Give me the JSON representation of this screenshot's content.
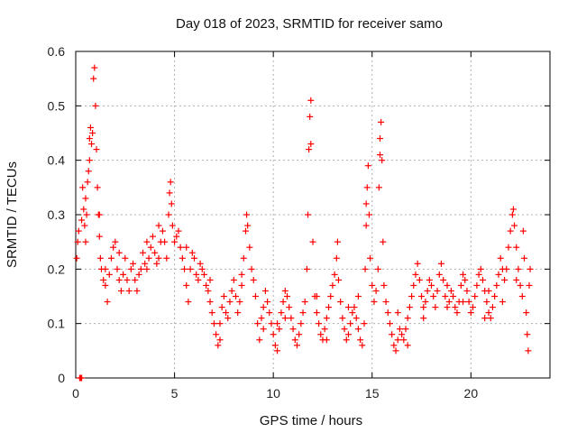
{
  "chart_data": {
    "type": "scatter",
    "title": "Day 018 of 2023, SRMTID for receiver samo",
    "xlabel": "GPS time / hours",
    "ylabel": "SRMTID / TECUs",
    "xlim": [
      0,
      24
    ],
    "ylim": [
      0,
      0.6
    ],
    "x_ticks": [
      0,
      5,
      10,
      15,
      20
    ],
    "x_tick_labels": [
      "0",
      "5",
      "10",
      "15",
      "20"
    ],
    "y_ticks": [
      0,
      0.1,
      0.2,
      0.3,
      0.4,
      0.5,
      0.6
    ],
    "y_tick_labels": [
      "0",
      "0.1",
      "0.2",
      "0.3",
      "0.4",
      "0.5",
      "0.6"
    ],
    "grid": true,
    "marker": "+",
    "color": "#ff0000",
    "series": [
      {
        "name": "SRMTID",
        "points": [
          [
            0.05,
            0.22
          ],
          [
            0.1,
            0.25
          ],
          [
            0.15,
            0.27
          ],
          [
            0.2,
            0.0
          ],
          [
            0.25,
            0.0
          ],
          [
            0.3,
            0.0
          ],
          [
            0.3,
            0.29
          ],
          [
            0.35,
            0.35
          ],
          [
            0.4,
            0.31
          ],
          [
            0.45,
            0.28
          ],
          [
            0.5,
            0.25
          ],
          [
            0.55,
            0.3
          ],
          [
            0.6,
            0.36
          ],
          [
            0.65,
            0.38
          ],
          [
            0.7,
            0.44
          ],
          [
            0.75,
            0.46
          ],
          [
            0.8,
            0.43
          ],
          [
            0.85,
            0.45
          ],
          [
            0.9,
            0.55
          ],
          [
            0.95,
            0.57
          ],
          [
            1.0,
            0.5
          ],
          [
            1.05,
            0.42
          ],
          [
            1.1,
            0.35
          ],
          [
            1.15,
            0.3
          ],
          [
            1.2,
            0.26
          ],
          [
            1.25,
            0.22
          ],
          [
            1.3,
            0.2
          ],
          [
            1.4,
            0.18
          ],
          [
            1.5,
            0.17
          ],
          [
            1.6,
            0.14
          ],
          [
            1.7,
            0.19
          ],
          [
            1.8,
            0.22
          ],
          [
            1.9,
            0.24
          ],
          [
            2.0,
            0.25
          ],
          [
            2.1,
            0.2
          ],
          [
            2.2,
            0.18
          ],
          [
            2.3,
            0.16
          ],
          [
            2.4,
            0.19
          ],
          [
            2.5,
            0.22
          ],
          [
            2.6,
            0.18
          ],
          [
            2.7,
            0.16
          ],
          [
            2.8,
            0.2
          ],
          [
            2.9,
            0.21
          ],
          [
            3.0,
            0.18
          ],
          [
            3.1,
            0.16
          ],
          [
            3.2,
            0.19
          ],
          [
            3.3,
            0.2
          ],
          [
            3.4,
            0.23
          ],
          [
            3.5,
            0.21
          ],
          [
            3.6,
            0.2
          ],
          [
            3.7,
            0.22
          ],
          [
            3.8,
            0.24
          ],
          [
            3.9,
            0.26
          ],
          [
            4.0,
            0.23
          ],
          [
            4.1,
            0.21
          ],
          [
            4.2,
            0.22
          ],
          [
            4.3,
            0.25
          ],
          [
            4.4,
            0.27
          ],
          [
            4.5,
            0.25
          ],
          [
            4.6,
            0.22
          ],
          [
            4.7,
            0.3
          ],
          [
            4.75,
            0.34
          ],
          [
            4.8,
            0.36
          ],
          [
            4.85,
            0.32
          ],
          [
            4.9,
            0.28
          ],
          [
            5.0,
            0.25
          ],
          [
            5.1,
            0.26
          ],
          [
            5.2,
            0.27
          ],
          [
            5.3,
            0.24
          ],
          [
            5.4,
            0.22
          ],
          [
            5.5,
            0.2
          ],
          [
            5.6,
            0.17
          ],
          [
            5.7,
            0.14
          ],
          [
            5.8,
            0.2
          ],
          [
            5.9,
            0.23
          ],
          [
            6.0,
            0.22
          ],
          [
            6.1,
            0.19
          ],
          [
            6.2,
            0.18
          ],
          [
            6.3,
            0.21
          ],
          [
            6.4,
            0.2
          ],
          [
            6.5,
            0.19
          ],
          [
            6.6,
            0.17
          ],
          [
            6.7,
            0.16
          ],
          [
            6.8,
            0.14
          ],
          [
            6.9,
            0.12
          ],
          [
            7.0,
            0.1
          ],
          [
            7.1,
            0.08
          ],
          [
            7.2,
            0.06
          ],
          [
            7.3,
            0.1
          ],
          [
            7.4,
            0.13
          ],
          [
            7.5,
            0.15
          ],
          [
            7.6,
            0.12
          ],
          [
            7.7,
            0.11
          ],
          [
            7.8,
            0.14
          ],
          [
            7.9,
            0.16
          ],
          [
            8.0,
            0.18
          ],
          [
            8.1,
            0.15
          ],
          [
            8.2,
            0.12
          ],
          [
            8.3,
            0.14
          ],
          [
            8.4,
            0.17
          ],
          [
            8.5,
            0.22
          ],
          [
            8.6,
            0.27
          ],
          [
            8.65,
            0.3
          ],
          [
            8.7,
            0.28
          ],
          [
            8.8,
            0.24
          ],
          [
            8.9,
            0.2
          ],
          [
            9.0,
            0.18
          ],
          [
            9.1,
            0.15
          ],
          [
            9.2,
            0.1
          ],
          [
            9.3,
            0.07
          ],
          [
            9.4,
            0.11
          ],
          [
            9.5,
            0.13
          ],
          [
            9.6,
            0.16
          ],
          [
            9.7,
            0.14
          ],
          [
            9.8,
            0.12
          ],
          [
            9.9,
            0.1
          ],
          [
            10.0,
            0.08
          ],
          [
            10.1,
            0.06
          ],
          [
            10.2,
            0.05
          ],
          [
            10.3,
            0.09
          ],
          [
            10.4,
            0.12
          ],
          [
            10.5,
            0.14
          ],
          [
            10.6,
            0.16
          ],
          [
            10.7,
            0.15
          ],
          [
            10.8,
            0.13
          ],
          [
            10.9,
            0.11
          ],
          [
            11.0,
            0.09
          ],
          [
            11.1,
            0.07
          ],
          [
            11.2,
            0.06
          ],
          [
            11.3,
            0.08
          ],
          [
            11.4,
            0.1
          ],
          [
            11.5,
            0.12
          ],
          [
            11.6,
            0.14
          ],
          [
            11.7,
            0.2
          ],
          [
            11.75,
            0.3
          ],
          [
            11.8,
            0.42
          ],
          [
            11.85,
            0.48
          ],
          [
            11.9,
            0.51
          ],
          [
            12.0,
            0.25
          ],
          [
            12.1,
            0.15
          ],
          [
            12.2,
            0.12
          ],
          [
            12.3,
            0.1
          ],
          [
            12.4,
            0.08
          ],
          [
            12.5,
            0.07
          ],
          [
            12.6,
            0.09
          ],
          [
            12.7,
            0.11
          ],
          [
            12.8,
            0.13
          ],
          [
            12.9,
            0.15
          ],
          [
            13.0,
            0.17
          ],
          [
            13.1,
            0.19
          ],
          [
            13.2,
            0.22
          ],
          [
            13.25,
            0.25
          ],
          [
            13.3,
            0.18
          ],
          [
            13.4,
            0.14
          ],
          [
            13.5,
            0.11
          ],
          [
            13.6,
            0.09
          ],
          [
            13.7,
            0.07
          ],
          [
            13.8,
            0.08
          ],
          [
            13.9,
            0.1
          ],
          [
            14.0,
            0.12
          ],
          [
            14.1,
            0.13
          ],
          [
            14.2,
            0.11
          ],
          [
            14.3,
            0.09
          ],
          [
            14.4,
            0.07
          ],
          [
            14.5,
            0.06
          ],
          [
            14.6,
            0.1
          ],
          [
            14.65,
            0.2
          ],
          [
            14.7,
            0.28
          ],
          [
            14.75,
            0.35
          ],
          [
            14.8,
            0.39
          ],
          [
            14.85,
            0.3
          ],
          [
            14.9,
            0.22
          ],
          [
            15.0,
            0.17
          ],
          [
            15.1,
            0.14
          ],
          [
            15.2,
            0.16
          ],
          [
            15.3,
            0.2
          ],
          [
            15.35,
            0.35
          ],
          [
            15.4,
            0.44
          ],
          [
            15.45,
            0.47
          ],
          [
            15.5,
            0.4
          ],
          [
            15.55,
            0.25
          ],
          [
            15.6,
            0.17
          ],
          [
            15.7,
            0.14
          ],
          [
            15.8,
            0.12
          ],
          [
            15.9,
            0.1
          ],
          [
            16.0,
            0.08
          ],
          [
            16.1,
            0.06
          ],
          [
            16.2,
            0.05
          ],
          [
            16.3,
            0.07
          ],
          [
            16.4,
            0.09
          ],
          [
            16.5,
            0.08
          ],
          [
            16.6,
            0.07
          ],
          [
            16.7,
            0.09
          ],
          [
            16.8,
            0.11
          ],
          [
            16.9,
            0.13
          ],
          [
            17.0,
            0.15
          ],
          [
            17.1,
            0.17
          ],
          [
            17.2,
            0.19
          ],
          [
            17.3,
            0.21
          ],
          [
            17.4,
            0.18
          ],
          [
            17.5,
            0.15
          ],
          [
            17.6,
            0.13
          ],
          [
            17.7,
            0.14
          ],
          [
            17.8,
            0.16
          ],
          [
            17.9,
            0.18
          ],
          [
            18.0,
            0.17
          ],
          [
            18.1,
            0.15
          ],
          [
            18.2,
            0.13
          ],
          [
            18.3,
            0.16
          ],
          [
            18.4,
            0.19
          ],
          [
            18.5,
            0.21
          ],
          [
            18.6,
            0.18
          ],
          [
            18.7,
            0.15
          ],
          [
            18.8,
            0.13
          ],
          [
            18.9,
            0.14
          ],
          [
            19.0,
            0.16
          ],
          [
            19.1,
            0.15
          ],
          [
            19.2,
            0.13
          ],
          [
            19.3,
            0.12
          ],
          [
            19.4,
            0.14
          ],
          [
            19.5,
            0.17
          ],
          [
            19.6,
            0.19
          ],
          [
            19.7,
            0.18
          ],
          [
            19.8,
            0.16
          ],
          [
            19.9,
            0.14
          ],
          [
            20.0,
            0.12
          ],
          [
            20.1,
            0.13
          ],
          [
            20.2,
            0.15
          ],
          [
            20.3,
            0.17
          ],
          [
            20.4,
            0.19
          ],
          [
            20.5,
            0.2
          ],
          [
            20.6,
            0.18
          ],
          [
            20.7,
            0.16
          ],
          [
            20.8,
            0.14
          ],
          [
            20.9,
            0.12
          ],
          [
            21.0,
            0.11
          ],
          [
            21.1,
            0.13
          ],
          [
            21.2,
            0.15
          ],
          [
            21.3,
            0.17
          ],
          [
            21.4,
            0.19
          ],
          [
            21.5,
            0.22
          ],
          [
            21.6,
            0.2
          ],
          [
            21.7,
            0.18
          ],
          [
            21.8,
            0.2
          ],
          [
            21.9,
            0.24
          ],
          [
            22.0,
            0.27
          ],
          [
            22.1,
            0.3
          ],
          [
            22.15,
            0.31
          ],
          [
            22.2,
            0.28
          ],
          [
            22.3,
            0.24
          ],
          [
            22.4,
            0.2
          ],
          [
            22.5,
            0.17
          ],
          [
            22.6,
            0.15
          ],
          [
            22.65,
            0.27
          ],
          [
            22.7,
            0.22
          ],
          [
            22.8,
            0.12
          ],
          [
            22.85,
            0.08
          ],
          [
            22.9,
            0.05
          ],
          [
            22.95,
            0.17
          ],
          [
            23.0,
            0.2
          ],
          [
            0.5,
            0.33
          ],
          [
            0.7,
            0.4
          ],
          [
            1.2,
            0.3
          ],
          [
            1.5,
            0.2
          ],
          [
            2.2,
            0.23
          ],
          [
            3.6,
            0.25
          ],
          [
            4.2,
            0.28
          ],
          [
            5.6,
            0.24
          ],
          [
            6.8,
            0.18
          ],
          [
            8.4,
            0.19
          ],
          [
            9.5,
            0.09
          ],
          [
            10.6,
            0.11
          ],
          [
            11.9,
            0.43
          ],
          [
            12.7,
            0.07
          ],
          [
            13.8,
            0.13
          ],
          [
            14.7,
            0.32
          ],
          [
            15.4,
            0.41
          ],
          [
            16.3,
            0.12
          ],
          [
            17.6,
            0.11
          ],
          [
            18.8,
            0.17
          ],
          [
            19.6,
            0.14
          ],
          [
            20.7,
            0.11
          ],
          [
            21.6,
            0.14
          ],
          [
            22.3,
            0.18
          ],
          [
            10.2,
            0.1
          ],
          [
            12.2,
            0.15
          ],
          [
            14.3,
            0.15
          ],
          [
            16.8,
            0.06
          ],
          [
            20.9,
            0.16
          ],
          [
            7.3,
            0.07
          ]
        ]
      }
    ]
  }
}
